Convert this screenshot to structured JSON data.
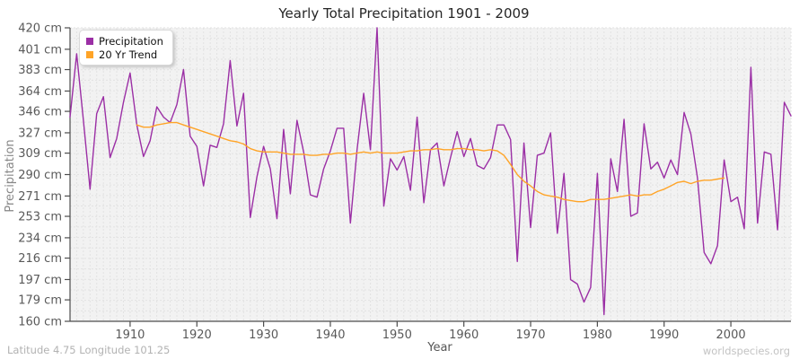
{
  "title": "Yearly Total Precipitation 1901 - 2009",
  "footer": {
    "left": "Latitude 4.75 Longitude 101.25",
    "right": "worldspecies.org"
  },
  "legend": {
    "items": [
      {
        "label": "Precipitation",
        "color": "#9b2fa5"
      },
      {
        "label": "20 Yr Trend",
        "color": "#ffa427"
      }
    ]
  },
  "axes": {
    "x_label": "Year",
    "y_label": "Precipitation",
    "x_ticks": [
      {
        "label": "1910",
        "year": 1910
      },
      {
        "label": "1920",
        "year": 1920
      },
      {
        "label": "1930",
        "year": 1930
      },
      {
        "label": "1940",
        "year": 1940
      },
      {
        "label": "1950",
        "year": 1950
      },
      {
        "label": "1960",
        "year": 1960
      },
      {
        "label": "1970",
        "year": 1970
      },
      {
        "label": "1980",
        "year": 1980
      },
      {
        "label": "1990",
        "year": 1990
      },
      {
        "label": "2000",
        "year": 2000
      }
    ],
    "y_ticks": [
      {
        "label": "420 cm",
        "value": 420
      },
      {
        "label": "401 cm",
        "value": 401
      },
      {
        "label": "383 cm",
        "value": 383
      },
      {
        "label": "364 cm",
        "value": 364
      },
      {
        "label": "346 cm",
        "value": 346
      },
      {
        "label": "327 cm",
        "value": 327
      },
      {
        "label": "309 cm",
        "value": 309
      },
      {
        "label": "290 cm",
        "value": 290
      },
      {
        "label": "271 cm",
        "value": 271
      },
      {
        "label": "253 cm",
        "value": 253
      },
      {
        "label": "234 cm",
        "value": 234
      },
      {
        "label": "216 cm",
        "value": 216
      },
      {
        "label": "197 cm",
        "value": 197
      },
      {
        "label": "179 cm",
        "value": 179
      },
      {
        "label": "160 cm",
        "value": 160
      }
    ]
  },
  "style": {
    "plot_bg": "#f2f2f2",
    "grid_color": "#e2e2e2",
    "spine_color": "#4d4d4d",
    "tick_label_color": "#595959",
    "axis_title_color": "#878787",
    "x_label_color": "#555555"
  },
  "chart_data": {
    "type": "line",
    "title": "Yearly Total Precipitation 1901 - 2009",
    "xlabel": "Year",
    "ylabel": "Precipitation",
    "xlim": [
      1901,
      2009
    ],
    "ylim": [
      160,
      420
    ],
    "grid": true,
    "legend_position": "top-left",
    "series": [
      {
        "name": "Precipitation",
        "color": "#9b2fa5",
        "x_start": 1901,
        "values": [
          341,
          397,
          338,
          277,
          344,
          359,
          305,
          322,
          354,
          380,
          334,
          306,
          320,
          350,
          341,
          336,
          352,
          383,
          324,
          315,
          280,
          316,
          314,
          335,
          391,
          333,
          362,
          252,
          288,
          315,
          295,
          251,
          330,
          273,
          338,
          310,
          272,
          270,
          295,
          311,
          331,
          331,
          247,
          312,
          362,
          312,
          420,
          262,
          304,
          294,
          306,
          276,
          341,
          265,
          312,
          318,
          280,
          305,
          328,
          306,
          322,
          298,
          295,
          305,
          334,
          334,
          321,
          213,
          318,
          243,
          307,
          309,
          327,
          238,
          291,
          197,
          193,
          177,
          190,
          291,
          166,
          304,
          275,
          339,
          253,
          256,
          335,
          295,
          301,
          287,
          303,
          290,
          345,
          326,
          287,
          221,
          211,
          227,
          303,
          266,
          270,
          242,
          385,
          247,
          310,
          308,
          241,
          354,
          342
        ]
      },
      {
        "name": "20 Yr Trend",
        "color": "#ffa427",
        "x_start": 1911,
        "values": [
          334,
          332,
          332,
          334,
          335,
          336,
          336,
          334,
          332,
          330,
          328,
          326,
          324,
          322,
          320,
          319,
          317,
          313,
          311,
          310,
          310,
          310,
          309,
          308,
          308,
          308,
          307,
          307,
          308,
          308,
          309,
          309,
          308,
          309,
          310,
          309,
          310,
          309,
          309,
          309,
          310,
          311,
          311,
          312,
          312,
          313,
          312,
          312,
          313,
          313,
          312,
          312,
          311,
          312,
          311,
          307,
          299,
          290,
          284,
          280,
          275,
          272,
          271,
          270,
          268,
          267,
          266,
          266,
          268,
          268,
          268,
          269,
          270,
          271,
          272,
          271,
          272,
          272,
          275,
          277,
          280,
          283,
          284,
          282,
          284,
          285,
          285,
          286,
          287
        ]
      }
    ]
  }
}
